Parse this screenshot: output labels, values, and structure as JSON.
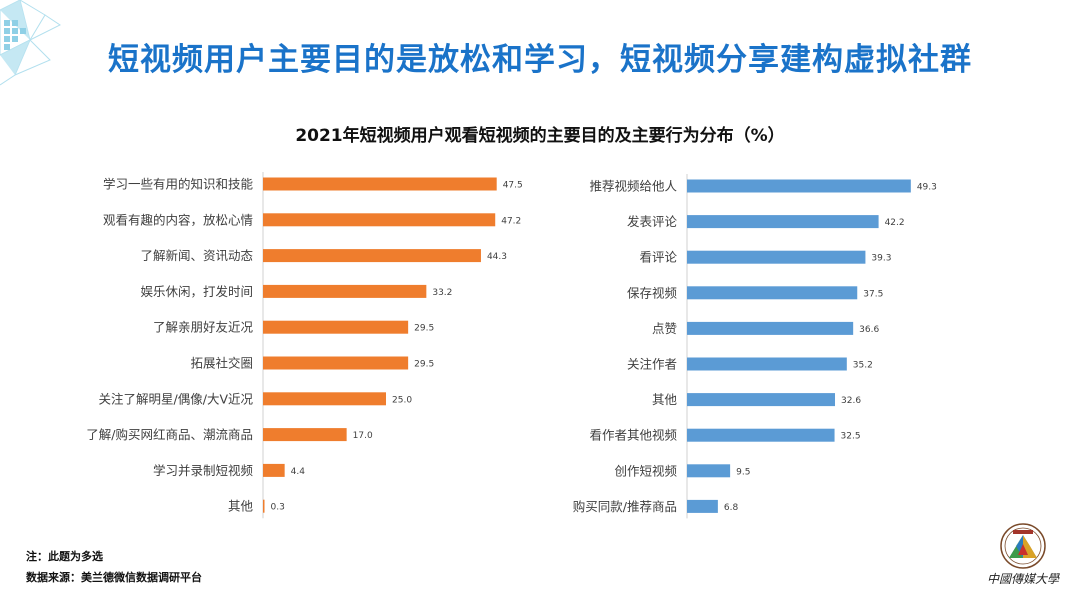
{
  "headline": "短视频用户主要目的是放松和学习，短视频分享建构虚拟社群",
  "subtitle": "2021年短视频用户观看短视频的主要目的及主要行为分布（%）",
  "note": "注：此题为多选",
  "source": "数据来源：美兰德微信数据调研平台",
  "logo": {
    "icon": "university-seal-icon",
    "text": "中國傳媒大學"
  },
  "colors": {
    "left_bars": "#ef7d2d",
    "right_bars": "#5b9bd5",
    "headline": "#1a73c9"
  },
  "chart_data": [
    {
      "type": "bar",
      "orientation": "horizontal",
      "categories": [
        "学习一些有用的知识和技能",
        "观看有趣的内容，放松心情",
        "了解新闻、资讯动态",
        "娱乐休闲，打发时间",
        "了解亲朋好友近况",
        "拓展社交圈",
        "关注了解明星/偶像/大V近况",
        "了解/购买网红商品、潮流商品",
        "学习并录制短视频",
        "其他"
      ],
      "values": [
        47.5,
        47.2,
        44.3,
        33.2,
        29.5,
        29.5,
        25.0,
        17.0,
        4.4,
        0.3
      ],
      "value_labels": [
        "47.5",
        "47.2",
        "44.3",
        "33.2",
        "29.5",
        "29.5",
        "25.0",
        "17.0",
        "4.4",
        "0.3"
      ],
      "xlim": [
        0,
        50
      ],
      "grid": false
    },
    {
      "type": "bar",
      "orientation": "horizontal",
      "categories": [
        "推荐视频给他人",
        "发表评论",
        "看评论",
        "保存视频",
        "点赞",
        "关注作者",
        "其他",
        "看作者其他视频",
        "创作短视频",
        "购买同款/推荐商品"
      ],
      "values": [
        49.3,
        42.2,
        39.3,
        37.5,
        36.6,
        35.2,
        32.6,
        32.5,
        9.5,
        6.8
      ],
      "value_labels": [
        "49.3",
        "42.2",
        "39.3",
        "37.5",
        "36.6",
        "35.2",
        "32.6",
        "32.5",
        "9.5",
        "6.8"
      ],
      "xlim": [
        0,
        50
      ],
      "grid": false
    }
  ]
}
